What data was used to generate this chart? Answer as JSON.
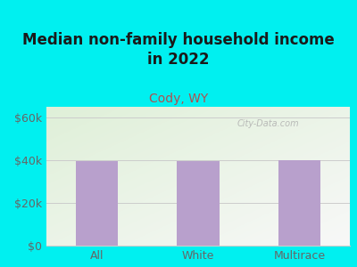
{
  "title": "Median non-family household income\nin 2022",
  "subtitle": "Cody, WY",
  "categories": [
    "All",
    "White",
    "Multirace"
  ],
  "values": [
    39500,
    39500,
    40000
  ],
  "bar_color": "#b8a0cc",
  "title_color": "#1a1a1a",
  "subtitle_color": "#b05050",
  "tick_label_color": "#666666",
  "yticks": [
    0,
    20000,
    40000,
    60000
  ],
  "ytick_labels": [
    "$0",
    "$20k",
    "$40k",
    "$60k"
  ],
  "ylim": [
    0,
    65000
  ],
  "background_outer": "#00f0f0",
  "background_inner_top_left": "#dff0d8",
  "background_inner_bottom_right": "#f8f8f8",
  "grid_color": "#cccccc",
  "watermark": "City-Data.com",
  "title_fontsize": 12,
  "subtitle_fontsize": 10,
  "tick_fontsize": 9,
  "bar_width": 0.42
}
